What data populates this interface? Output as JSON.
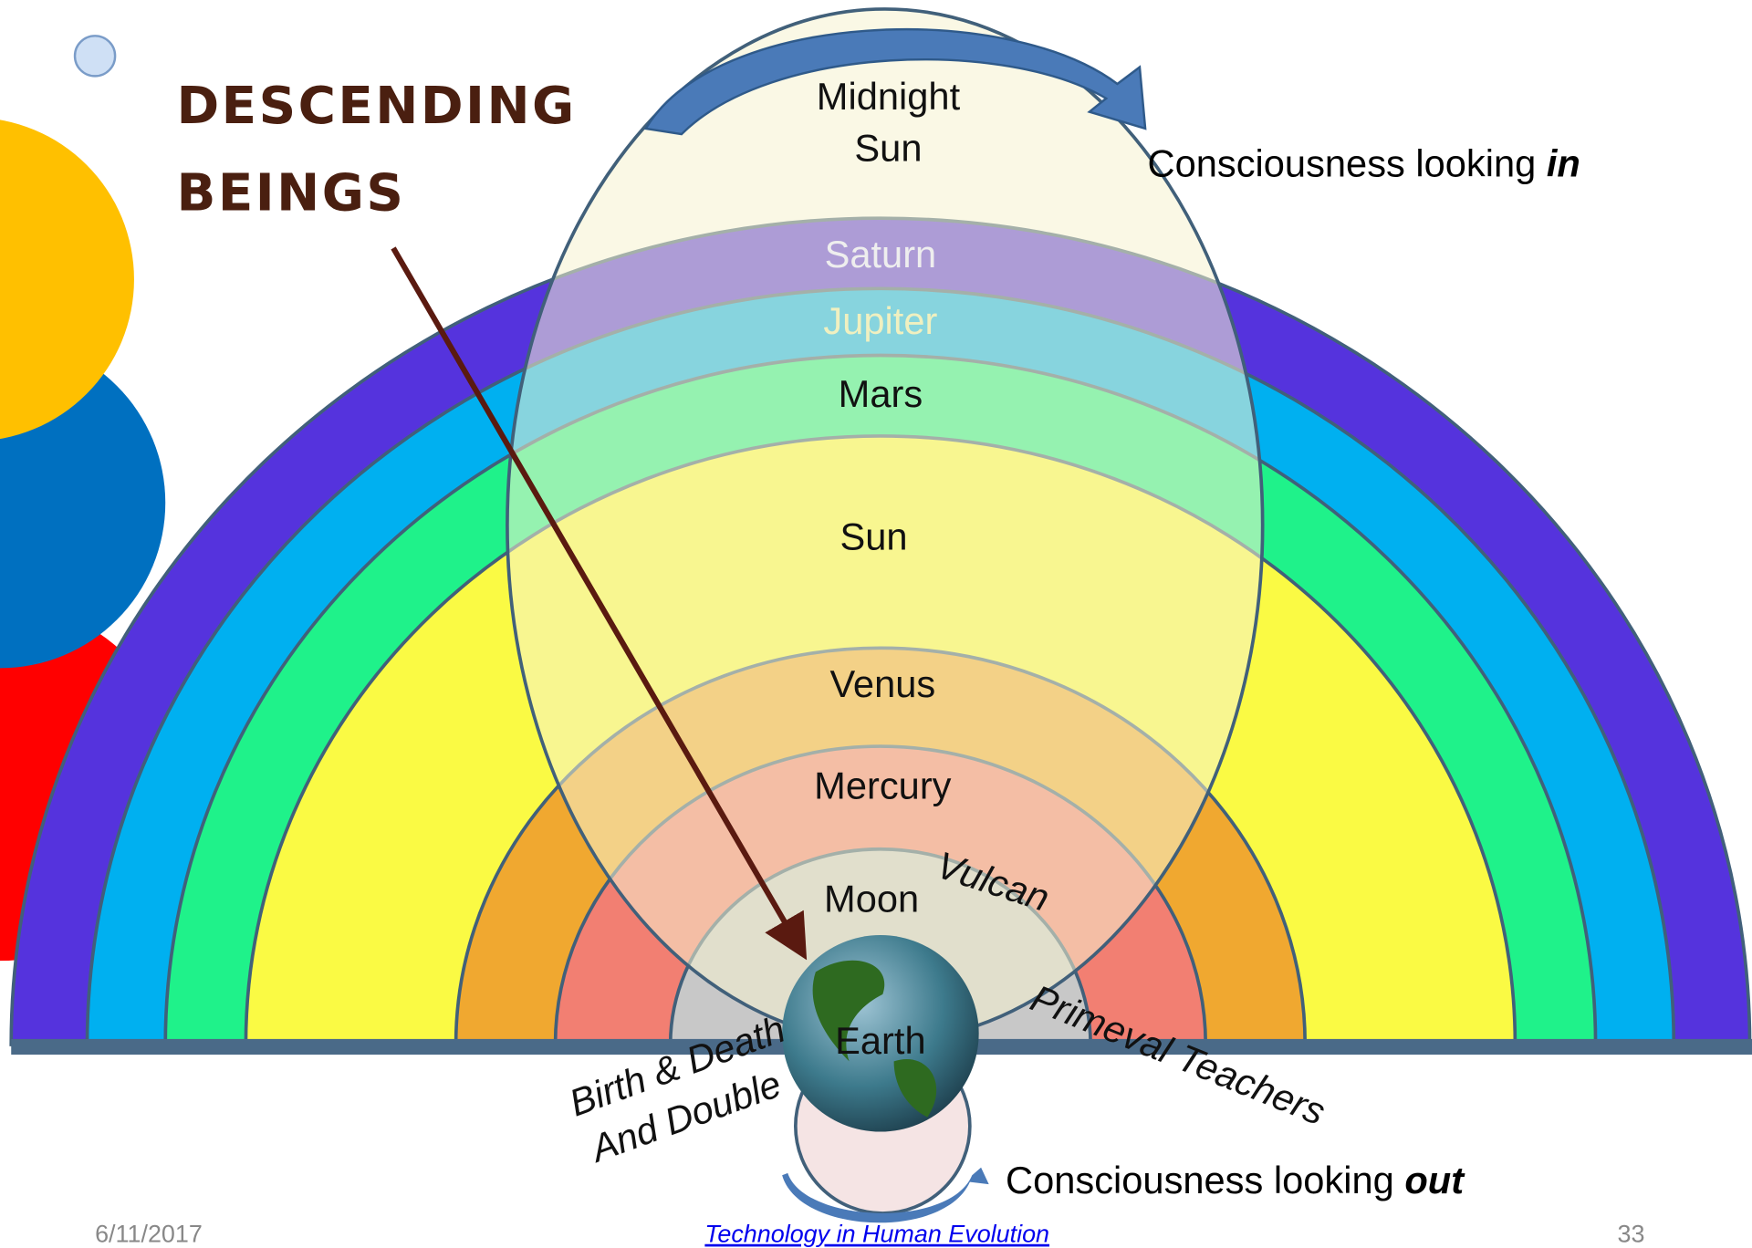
{
  "title": {
    "lines": [
      "DESCENDING",
      "BEINGS"
    ]
  },
  "bands": {
    "midnight_sun": [
      "Midnight",
      "Sun"
    ],
    "saturn": "Saturn",
    "jupiter": "Jupiter",
    "mars": "Mars",
    "sun": "Sun",
    "venus": "Venus",
    "mercury": "Mercury",
    "moon": "Moon",
    "vulcan": "Vulcan",
    "earth": "Earth"
  },
  "beings": {
    "birth_death": "Birth & Death",
    "and_double": "And Double",
    "primeval": "Primeval Teachers"
  },
  "consciousness_in": {
    "text": "Consciousness looking ",
    "emphasis": "in"
  },
  "consciousness_out": {
    "text": "Consciousness looking ",
    "emphasis": "out"
  },
  "footer": {
    "date": "6/11/2017",
    "link": "Technology in Human Evolution",
    "page": "33"
  }
}
